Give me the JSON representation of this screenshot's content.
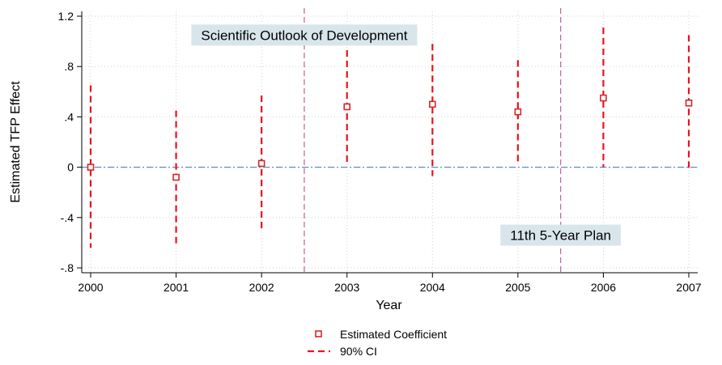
{
  "chart_data": {
    "type": "scatter",
    "xlabel": "Year",
    "ylabel": "Estimated TFP Effect",
    "x": [
      2000,
      2001,
      2002,
      2003,
      2004,
      2005,
      2006,
      2007
    ],
    "xlim": [
      2000,
      2007
    ],
    "ylim": [
      -0.8,
      1.2
    ],
    "y_ticks": [
      -0.8,
      -0.4,
      0,
      0.4,
      0.8,
      1.2
    ],
    "y_tick_labels": [
      "-.8",
      "-.4",
      "0",
      ".4",
      ".8",
      "1.2"
    ],
    "x_tick_labels": [
      "2000",
      "2001",
      "2002",
      "2003",
      "2004",
      "2005",
      "2006",
      "2007"
    ],
    "grid": true,
    "legend_position": "bottom",
    "series": [
      {
        "name": "Estimated Coefficient",
        "marker": "hollow-square",
        "color": "#d62728",
        "values": [
          0.0,
          -0.08,
          0.03,
          0.48,
          0.5,
          0.44,
          0.55,
          0.51
        ]
      },
      {
        "name": "90% CI",
        "style": "dashed-vertical",
        "color": "#e8121f",
        "lower": [
          -0.64,
          -0.61,
          -0.5,
          0.04,
          -0.07,
          0.03,
          0.0,
          -0.02
        ],
        "upper": [
          0.65,
          0.45,
          0.57,
          0.93,
          0.98,
          0.85,
          1.11,
          1.05
        ]
      }
    ],
    "reference_lines": [
      {
        "axis": "y",
        "value": 0,
        "style": "dash-dot",
        "color": "#5b8ec4"
      },
      {
        "axis": "x",
        "value": 2002.5,
        "style": "dashed",
        "color": "#c46aa0"
      },
      {
        "axis": "x",
        "value": 2005.5,
        "style": "dashed",
        "color": "#c46aa0"
      }
    ],
    "annotations": [
      {
        "text": "Scientific Outlook of Development",
        "x": 2002.5,
        "y": 1.05
      },
      {
        "text": "11th 5-Year Plan",
        "x": 2005.5,
        "y": -0.54
      }
    ],
    "colors": {
      "point": "#d62728",
      "ci": "#e8121f",
      "zero_line": "#5b8ec4",
      "policy_line": "#c46aa0",
      "annotation_bg": "#d8e6ec",
      "grid": "#cfcfcf"
    }
  }
}
